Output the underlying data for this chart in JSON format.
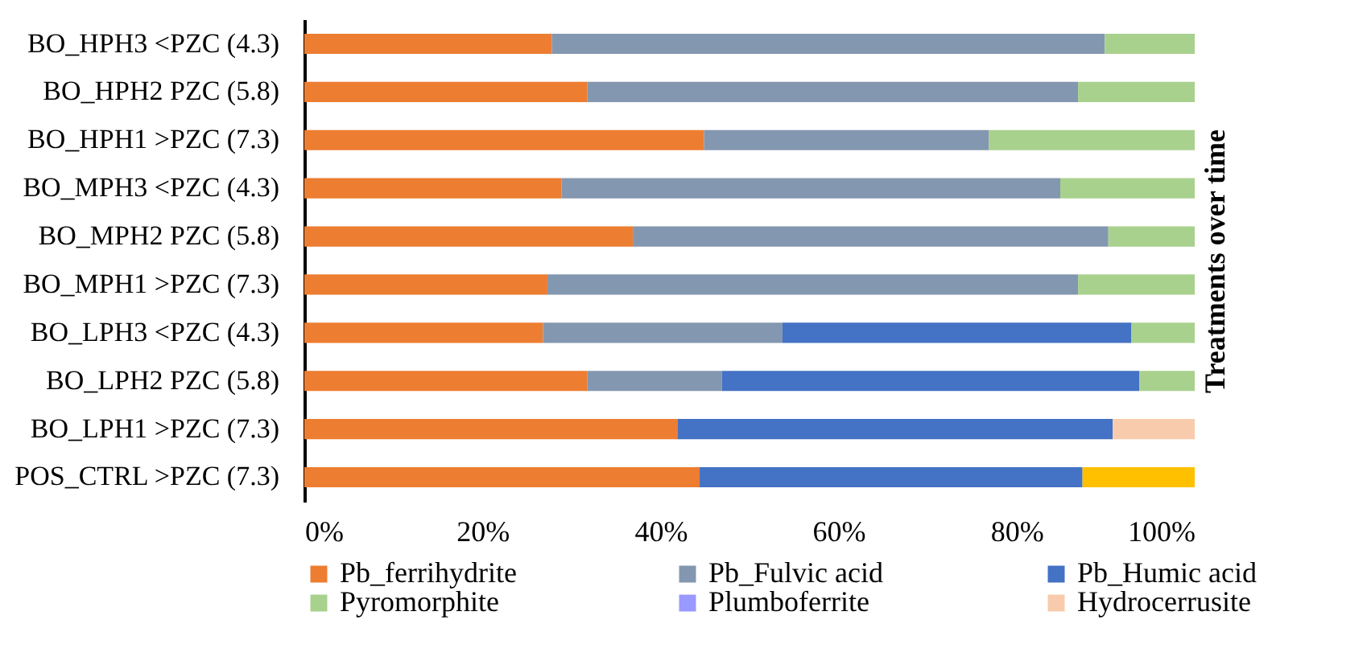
{
  "chart_data": {
    "type": "bar",
    "orientation": "horizontal",
    "stacked": true,
    "legend": "bottom",
    "ylabel": "Treatments over time",
    "categories": [
      "BO_HPH3 <PZC (4.3)",
      "BO_HPH2 PZC (5.8)",
      "BO_HPH1 >PZC (7.3)",
      "BO_MPH3 <PZC (4.3)",
      "BO_MPH2 PZC (5.8)",
      "BO_MPH1 >PZC (7.3)",
      "BO_LPH3 <PZC (4.3)",
      "BO_LPH2 PZC (5.8)",
      "BO_LPH1 >PZC (7.3)",
      "POS_CTRL >PZC (7.3)"
    ],
    "xlim": [
      0,
      100
    ],
    "xticks": [
      {
        "value": 0,
        "label": "0%"
      },
      {
        "value": 20,
        "label": "20%"
      },
      {
        "value": 40,
        "label": "40%"
      },
      {
        "value": 60,
        "label": "60%"
      },
      {
        "value": 80,
        "label": "80%"
      },
      {
        "value": 100,
        "label": "100%"
      }
    ],
    "series": [
      {
        "name": "Pb_ferrihydrite",
        "color": "#ed7d31",
        "values": [
          27.8,
          31.8,
          44.9,
          28.9,
          36.9,
          27.3,
          26.8,
          31.8,
          41.9,
          44.4
        ]
      },
      {
        "name": "Pb_Fulvic acid",
        "color": "#8497b0",
        "values": [
          62.1,
          55.1,
          32.0,
          56.0,
          53.4,
          59.6,
          26.9,
          15.1,
          0,
          0
        ]
      },
      {
        "name": "Pb_Humic acid",
        "color": "#4472c4",
        "values": [
          0,
          0,
          0,
          0,
          0,
          0,
          39.2,
          46.9,
          48.9,
          43.0
        ]
      },
      {
        "name": "Pyromorphite",
        "color": "#a9d18e",
        "values": [
          10.1,
          13.1,
          23.1,
          15.1,
          9.7,
          13.1,
          7.1,
          6.2,
          0,
          0
        ]
      },
      {
        "name": "Plumboferrite",
        "color": "#9999ff",
        "values": [
          0,
          0,
          0,
          0,
          0,
          0,
          0,
          0,
          0,
          0
        ]
      },
      {
        "name": "Hydrocerrusite",
        "color": "#f8cbad",
        "values": [
          0,
          0,
          0,
          0,
          0,
          0,
          0,
          0,
          9.2,
          0
        ]
      },
      {
        "color": "#ffc000",
        "values": [
          0,
          0,
          0,
          0,
          0,
          0,
          0,
          0,
          0,
          12.6
        ]
      }
    ]
  }
}
